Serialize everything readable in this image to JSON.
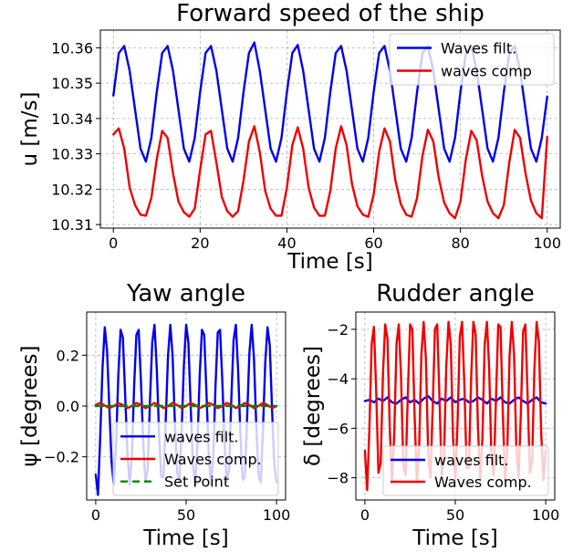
{
  "chart_data": [
    {
      "id": "speed",
      "type": "line",
      "title": "Forward speed of the ship",
      "xlabel": "Time [s]",
      "ylabel": "u [m/s]",
      "xlim": [
        -3,
        103
      ],
      "ylim": [
        10.309,
        10.365
      ],
      "xticks": [
        0,
        20,
        40,
        60,
        80,
        100
      ],
      "xtick_labels": [
        "0",
        "20",
        "40",
        "60",
        "80",
        "100"
      ],
      "yticks": [
        10.31,
        10.32,
        10.33,
        10.34,
        10.35,
        10.36
      ],
      "ytick_labels": [
        "10.31",
        "10.32",
        "10.33",
        "10.34",
        "10.35",
        "10.36"
      ],
      "grid": true,
      "legend_position": "top-right",
      "series": [
        {
          "name": "Waves filt.",
          "color": "#0000ee",
          "x": [
            0,
            1.25,
            2.5,
            3.75,
            5,
            6.25,
            7.5,
            8.75,
            10,
            11.25,
            12.5,
            13.75,
            15,
            16.25,
            17.5,
            18.75,
            20,
            21.25,
            22.5,
            23.75,
            25,
            26.25,
            27.5,
            28.75,
            30,
            31.25,
            32.5,
            33.75,
            35,
            36.25,
            37.5,
            38.75,
            40,
            41.25,
            42.5,
            43.75,
            45,
            46.25,
            47.5,
            48.75,
            50,
            51.25,
            52.5,
            53.75,
            55,
            56.25,
            57.5,
            58.75,
            60,
            61.25,
            62.5,
            63.75,
            65,
            66.25,
            67.5,
            68.75,
            70,
            71.25,
            72.5,
            73.75,
            75,
            76.25,
            77.5,
            78.75,
            80,
            81.25,
            82.5,
            83.75,
            85,
            86.25,
            87.5,
            88.75,
            90,
            91.25,
            92.5,
            93.75,
            95,
            96.25,
            97.5,
            98.75,
            100
          ],
          "y": [
            10.3465,
            10.3585,
            10.3605,
            10.3535,
            10.3425,
            10.3315,
            10.3278,
            10.3345,
            10.3475,
            10.3585,
            10.3605,
            10.3535,
            10.3425,
            10.3315,
            10.3278,
            10.3345,
            10.3475,
            10.3585,
            10.3605,
            10.3535,
            10.3425,
            10.3315,
            10.3278,
            10.3345,
            10.3475,
            10.3585,
            10.3615,
            10.3535,
            10.3425,
            10.3315,
            10.3278,
            10.3345,
            10.3475,
            10.3585,
            10.3608,
            10.3535,
            10.3425,
            10.3315,
            10.3278,
            10.3345,
            10.3475,
            10.3585,
            10.3605,
            10.3535,
            10.3425,
            10.3315,
            10.3278,
            10.3345,
            10.3475,
            10.3585,
            10.3605,
            10.3535,
            10.3425,
            10.3315,
            10.3278,
            10.3345,
            10.3475,
            10.3585,
            10.3605,
            10.3535,
            10.3425,
            10.3315,
            10.3278,
            10.3345,
            10.3475,
            10.3585,
            10.3605,
            10.3535,
            10.3425,
            10.3315,
            10.3278,
            10.3345,
            10.3475,
            10.3585,
            10.3605,
            10.3535,
            10.3425,
            10.3315,
            10.3278,
            10.3345,
            10.3462
          ]
        },
        {
          "name": "waves comp",
          "color": "#ee0000",
          "x": [
            0,
            1.25,
            2.5,
            3.75,
            5,
            6.25,
            7.5,
            8.75,
            10,
            11.25,
            12.5,
            13.75,
            15,
            16.25,
            17.5,
            18.75,
            20,
            21.25,
            22.5,
            23.75,
            25,
            26.25,
            27.5,
            28.75,
            30,
            31.25,
            32.5,
            33.75,
            35,
            36.25,
            37.5,
            38.75,
            40,
            41.25,
            42.5,
            43.75,
            45,
            46.25,
            47.5,
            48.75,
            50,
            51.25,
            52.5,
            53.75,
            55,
            56.25,
            57.5,
            58.75,
            60,
            61.25,
            62.5,
            63.75,
            65,
            66.25,
            67.5,
            68.75,
            70,
            71.25,
            72.5,
            73.75,
            75,
            76.25,
            77.5,
            78.75,
            80,
            81.25,
            82.5,
            83.75,
            85,
            86.25,
            87.5,
            88.75,
            90,
            91.25,
            92.5,
            93.75,
            95,
            96.25,
            97.5,
            98.75,
            100
          ],
          "y": [
            10.3355,
            10.3372,
            10.3315,
            10.3205,
            10.3155,
            10.3128,
            10.3125,
            10.3175,
            10.3285,
            10.3365,
            10.3345,
            10.3245,
            10.3165,
            10.3135,
            10.3122,
            10.3145,
            10.3255,
            10.3355,
            10.3365,
            10.3275,
            10.3178,
            10.3138,
            10.3122,
            10.3138,
            10.3225,
            10.3335,
            10.3378,
            10.3305,
            10.3195,
            10.3145,
            10.3125,
            10.3125,
            10.3205,
            10.3325,
            10.3375,
            10.3315,
            10.3205,
            10.3148,
            10.3125,
            10.3125,
            10.3195,
            10.3315,
            10.3378,
            10.3325,
            10.3215,
            10.3152,
            10.3128,
            10.3122,
            10.3185,
            10.3305,
            10.3372,
            10.3335,
            10.3225,
            10.3158,
            10.3128,
            10.3122,
            10.3175,
            10.3295,
            10.3368,
            10.3335,
            10.3232,
            10.3162,
            10.3132,
            10.3118,
            10.3165,
            10.3285,
            10.3365,
            10.3338,
            10.3238,
            10.3165,
            10.3132,
            10.3118,
            10.3155,
            10.3275,
            10.3368,
            10.3345,
            10.3245,
            10.3168,
            10.3132,
            10.3118,
            10.3348
          ]
        }
      ]
    },
    {
      "id": "yaw",
      "type": "line",
      "title": "Yaw angle",
      "xlabel": "Time [s]",
      "ylabel": "ψ [degrees]",
      "xlim": [
        -5,
        105
      ],
      "ylim": [
        -0.37,
        0.37
      ],
      "xticks": [
        0,
        50,
        100
      ],
      "xtick_labels": [
        "0",
        "50",
        "100"
      ],
      "yticks": [
        -0.2,
        0.0,
        0.2
      ],
      "ytick_labels": [
        "−0.2",
        "0.0",
        "0.2"
      ],
      "grid": true,
      "legend_position": "lower-right",
      "series": [
        {
          "name": "waves filt.",
          "color": "#0000ee",
          "x": [
            0,
            1.25,
            2.5,
            3.75,
            5,
            6.25,
            7.5,
            8.75,
            10,
            11.25,
            12.5,
            13.75,
            15,
            16.25,
            17.5,
            18.75,
            20,
            21.25,
            22.5,
            23.75,
            25,
            26.25,
            27.5,
            28.75,
            30,
            31.25,
            32.5,
            33.75,
            35,
            36.25,
            37.5,
            38.75,
            40,
            41.25,
            42.5,
            43.75,
            45,
            46.25,
            47.5,
            48.75,
            50,
            51.25,
            52.5,
            53.75,
            55,
            56.25,
            57.5,
            58.75,
            60,
            61.25,
            62.5,
            63.75,
            65,
            66.25,
            67.5,
            68.75,
            70,
            71.25,
            72.5,
            73.75,
            75,
            76.25,
            77.5,
            78.75,
            80,
            81.25,
            82.5,
            83.75,
            85,
            86.25,
            87.5,
            88.75,
            90,
            91.25,
            92.5,
            93.75,
            95,
            96.25,
            97.5,
            98.75,
            100
          ],
          "y": [
            -0.27,
            -0.35,
            -0.12,
            0.15,
            0.31,
            0.22,
            0.0,
            -0.22,
            -0.31,
            -0.15,
            0.12,
            0.3,
            0.27,
            0.05,
            -0.18,
            -0.31,
            -0.2,
            0.08,
            0.28,
            0.3,
            0.1,
            -0.14,
            -0.3,
            -0.25,
            0.02,
            0.25,
            0.32,
            0.15,
            -0.1,
            -0.28,
            -0.28,
            -0.05,
            0.2,
            0.32,
            0.2,
            -0.06,
            -0.26,
            -0.3,
            -0.1,
            0.16,
            0.32,
            0.25,
            0.0,
            -0.23,
            -0.31,
            -0.15,
            0.12,
            0.3,
            0.28,
            0.05,
            -0.19,
            -0.31,
            -0.2,
            0.08,
            0.29,
            0.3,
            0.1,
            -0.15,
            -0.3,
            -0.25,
            0.03,
            0.26,
            0.32,
            0.14,
            -0.11,
            -0.29,
            -0.28,
            -0.04,
            0.21,
            0.32,
            0.19,
            -0.07,
            -0.27,
            -0.3,
            -0.09,
            0.17,
            0.31,
            0.24,
            -0.01,
            -0.23,
            -0.3
          ]
        },
        {
          "name": "Waves comp.",
          "color": "#ee0000",
          "x": [
            0,
            2.5,
            5,
            7.5,
            10,
            12.5,
            15,
            17.5,
            20,
            22.5,
            25,
            27.5,
            30,
            32.5,
            35,
            37.5,
            40,
            42.5,
            45,
            47.5,
            50,
            52.5,
            55,
            57.5,
            60,
            62.5,
            65,
            67.5,
            70,
            72.5,
            75,
            77.5,
            80,
            82.5,
            85,
            87.5,
            90,
            92.5,
            95,
            97.5,
            100
          ],
          "y": [
            0.005,
            0.012,
            0.002,
            -0.008,
            0.0,
            0.012,
            0.004,
            -0.008,
            0.0,
            0.012,
            0.004,
            -0.008,
            0.0,
            0.012,
            0.004,
            -0.008,
            0.0,
            0.012,
            0.004,
            -0.008,
            0.0,
            0.012,
            0.004,
            -0.008,
            0.0,
            0.012,
            0.004,
            -0.008,
            0.0,
            0.012,
            0.004,
            -0.008,
            0.0,
            0.012,
            0.004,
            -0.008,
            0.0,
            0.012,
            0.004,
            -0.008,
            0.0
          ]
        },
        {
          "name": "Set Point",
          "color": "#008800",
          "dashed": true,
          "x": [
            0,
            100
          ],
          "y": [
            0,
            0
          ]
        }
      ]
    },
    {
      "id": "rudder",
      "type": "line",
      "title": "Rudder angle",
      "xlabel": "Time [s]",
      "ylabel": "δ [degrees]",
      "xlim": [
        -5,
        105
      ],
      "ylim": [
        -8.9,
        -1.3
      ],
      "xticks": [
        0,
        50,
        100
      ],
      "xtick_labels": [
        "0",
        "50",
        "100"
      ],
      "yticks": [
        -8,
        -6,
        -4,
        -2
      ],
      "ytick_labels": [
        "−8",
        "−6",
        "−4",
        "−2"
      ],
      "grid": true,
      "legend_position": "lower-right",
      "series": [
        {
          "name": "waves filt.",
          "color": "#0000ee",
          "x": [
            0,
            2.5,
            5,
            7.5,
            10,
            12.5,
            15,
            17.5,
            20,
            22.5,
            25,
            27.5,
            30,
            32.5,
            35,
            37.5,
            40,
            42.5,
            45,
            47.5,
            50,
            52.5,
            55,
            57.5,
            60,
            62.5,
            65,
            67.5,
            70,
            72.5,
            75,
            77.5,
            80,
            82.5,
            85,
            87.5,
            90,
            92.5,
            95,
            97.5,
            100
          ],
          "y": [
            -4.9,
            -4.85,
            -4.95,
            -4.8,
            -4.9,
            -4.75,
            -4.95,
            -5.0,
            -4.85,
            -4.75,
            -4.95,
            -4.85,
            -5.0,
            -4.8,
            -4.7,
            -4.9,
            -5.0,
            -4.8,
            -4.9,
            -4.75,
            -4.95,
            -4.85,
            -4.8,
            -4.95,
            -4.9,
            -4.75,
            -4.85,
            -5.0,
            -4.8,
            -4.9,
            -4.75,
            -4.95,
            -5.0,
            -4.85,
            -4.75,
            -4.9,
            -5.0,
            -4.85,
            -4.75,
            -4.95,
            -5.0
          ]
        },
        {
          "name": "Waves comp.",
          "color": "#ee0000",
          "x": [
            0,
            1.25,
            2.5,
            3.75,
            5,
            6.25,
            7.5,
            8.75,
            10,
            11.25,
            12.5,
            13.75,
            15,
            16.25,
            17.5,
            18.75,
            20,
            21.25,
            22.5,
            23.75,
            25,
            26.25,
            27.5,
            28.75,
            30,
            31.25,
            32.5,
            33.75,
            35,
            36.25,
            37.5,
            38.75,
            40,
            41.25,
            42.5,
            43.75,
            45,
            46.25,
            47.5,
            48.75,
            50,
            51.25,
            52.5,
            53.75,
            55,
            56.25,
            57.5,
            58.75,
            60,
            61.25,
            62.5,
            63.75,
            65,
            66.25,
            67.5,
            68.75,
            70,
            71.25,
            72.5,
            73.75,
            75,
            76.25,
            77.5,
            78.75,
            80,
            81.25,
            82.5,
            83.75,
            85,
            86.25,
            87.5,
            88.75,
            90,
            91.25,
            92.5,
            93.75,
            95,
            96.25,
            97.5,
            98.75,
            100
          ],
          "y": [
            -6.9,
            -8.5,
            -6.0,
            -2.6,
            -1.9,
            -4.5,
            -7.8,
            -7.4,
            -3.8,
            -1.8,
            -2.4,
            -6.0,
            -8.2,
            -6.2,
            -2.6,
            -1.8,
            -3.9,
            -7.5,
            -7.9,
            -4.6,
            -1.8,
            -2.0,
            -5.5,
            -8.2,
            -6.8,
            -3.0,
            -1.7,
            -3.2,
            -7.0,
            -8.0,
            -5.2,
            -2.0,
            -1.8,
            -4.8,
            -7.9,
            -7.2,
            -3.5,
            -1.7,
            -2.6,
            -6.4,
            -8.1,
            -5.8,
            -2.3,
            -1.7,
            -4.2,
            -7.6,
            -7.6,
            -4.0,
            -1.7,
            -2.2,
            -5.9,
            -8.1,
            -6.4,
            -2.6,
            -1.7,
            -3.6,
            -7.3,
            -7.9,
            -4.8,
            -1.8,
            -1.9,
            -5.3,
            -8.1,
            -6.9,
            -3.1,
            -1.7,
            -3.0,
            -6.8,
            -8.0,
            -5.4,
            -2.1,
            -1.8,
            -4.7,
            -7.8,
            -7.3,
            -3.6,
            -1.7,
            -2.5,
            -6.2,
            -8.1,
            -6.9
          ]
        }
      ]
    }
  ]
}
